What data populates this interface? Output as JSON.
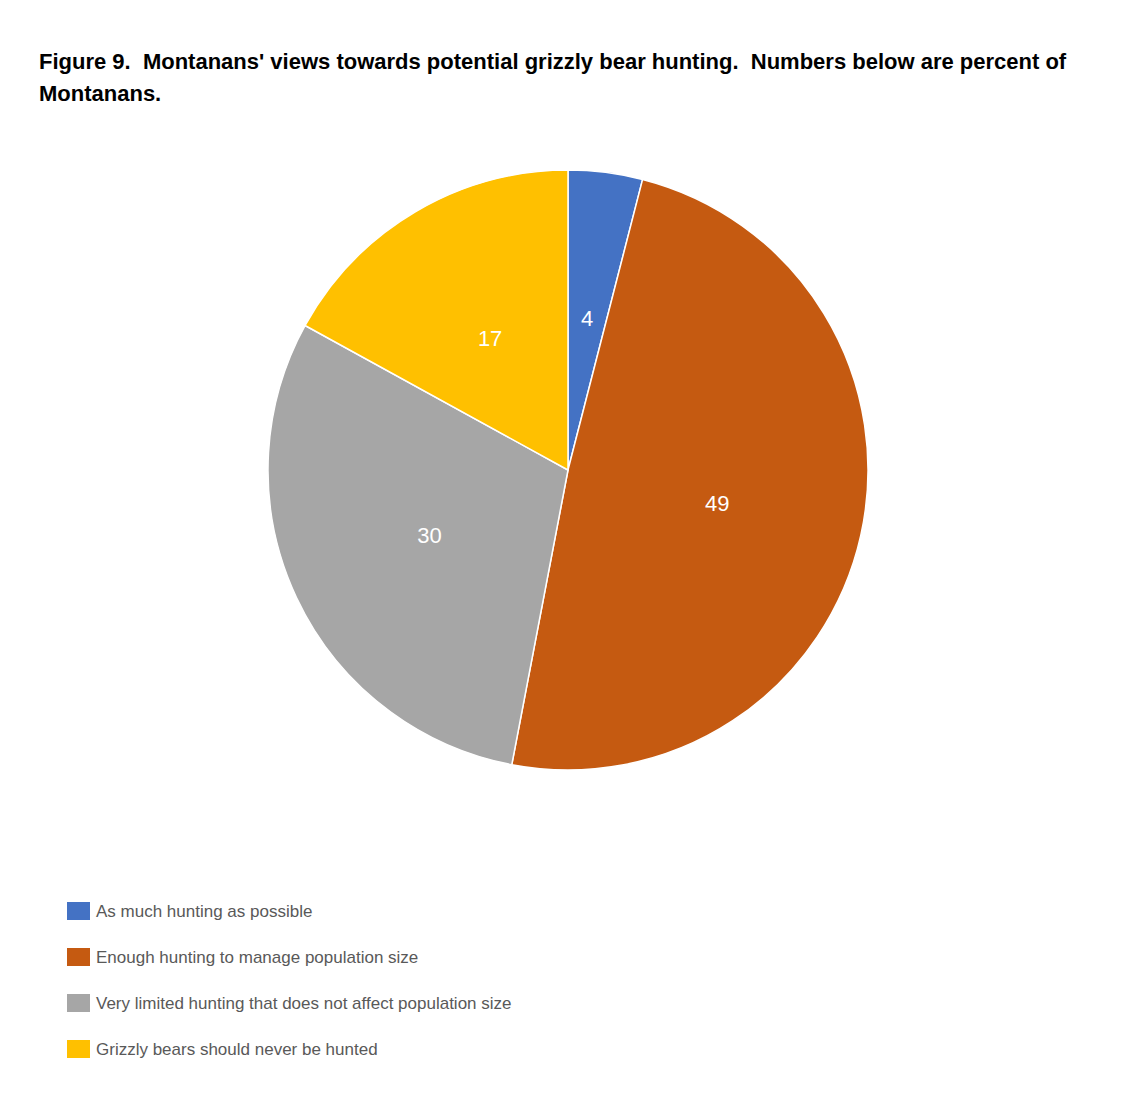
{
  "chart_data": {
    "type": "pie",
    "title": "Figure 9.  Montanans' views towards potential grizzly bear hunting.  Numbers below are percent of Montanans.",
    "categories": [
      "As much hunting as possible",
      "Enough hunting to manage population size",
      "Very limited hunting that does not affect population size",
      "Grizzly bears should never be hunted"
    ],
    "values": [
      4,
      49,
      30,
      17
    ],
    "colors": [
      "#4472C4",
      "#C55A11",
      "#A6A6A6",
      "#FFC000"
    ],
    "data_labels": true,
    "legend": "lower left"
  }
}
